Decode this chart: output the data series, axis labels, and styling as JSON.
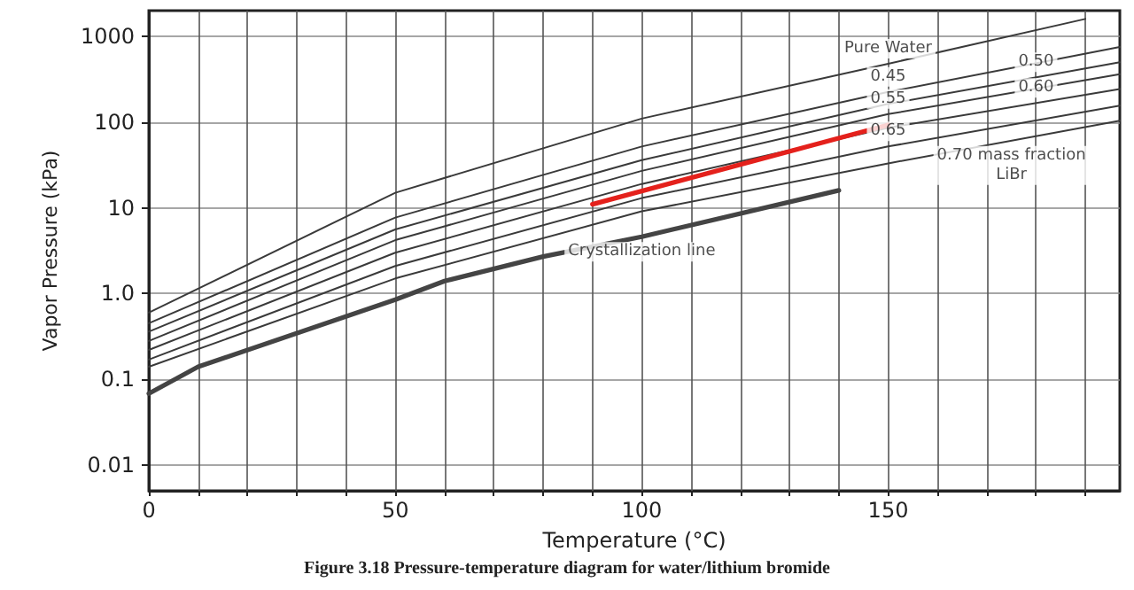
{
  "chart_data": {
    "type": "line",
    "xlabel": "Temperature (°C)",
    "ylabel": "Vapor Pressure (kPa)",
    "log": "y",
    "grid": true,
    "marker": "none",
    "line_style": "solid",
    "color": "#3a3a3a",
    "xlim": [
      0,
      197
    ],
    "xticks": [
      0,
      {
        "value": 10,
        "label": null
      },
      {
        "value": 20,
        "label": null
      },
      {
        "value": 30,
        "label": null
      },
      {
        "value": 40,
        "label": null
      },
      50,
      {
        "value": 60,
        "label": null
      },
      {
        "value": 70,
        "label": null
      },
      {
        "value": 80,
        "label": null
      },
      {
        "value": 90,
        "label": null
      },
      100,
      {
        "value": 110,
        "label": null
      },
      {
        "value": 120,
        "label": null
      },
      {
        "value": 130,
        "label": null
      },
      {
        "value": 140,
        "label": null
      },
      150,
      {
        "value": 160,
        "label": null
      },
      {
        "value": 170,
        "label": null
      },
      {
        "value": 180,
        "label": null
      },
      {
        "value": 190,
        "label": null
      }
    ],
    "ylim": [
      0.005,
      2000
    ],
    "yticks": [
      0.01,
      0.1,
      {
        "value": 1,
        "label": "1.0"
      },
      10,
      100,
      1000
    ],
    "series": [
      {
        "x": [
          0,
          50,
          100,
          150,
          190
        ],
        "values": [
          0.6,
          15,
          110,
          480,
          1600
        ]
      },
      {
        "x": [
          0,
          50,
          100,
          150,
          197
        ],
        "values": [
          0.45,
          7.7,
          52,
          225,
          755
        ]
      },
      {
        "x": [
          0,
          50,
          100,
          150,
          197
        ],
        "values": [
          0.36,
          5.6,
          36,
          163,
          500
        ]
      },
      {
        "x": [
          0,
          50,
          100,
          150,
          197
        ],
        "values": [
          0.28,
          4.2,
          27,
          124,
          362
        ]
      },
      {
        "x": [
          0,
          50,
          100,
          150,
          197
        ],
        "values": [
          0.22,
          3.0,
          19,
          86,
          243
        ]
      },
      {
        "x": [
          0,
          50,
          100,
          150,
          197
        ],
        "values": [
          0.17,
          2.1,
          13,
          52,
          156
        ]
      },
      {
        "x": [
          0,
          50,
          100,
          150,
          197
        ],
        "values": [
          0.14,
          1.5,
          9.1,
          33,
          104
        ]
      },
      {
        "x": [
          0,
          10,
          50,
          60,
          80,
          100,
          140
        ],
        "values": [
          0.068,
          0.14,
          0.85,
          1.4,
          2.7,
          4.6,
          16
        ],
        "color": "#444444"
      },
      {
        "x": [
          90,
          150
        ],
        "values": [
          11,
          93
        ],
        "color": "#e4211c"
      }
    ],
    "annotations": [
      {
        "text": "Pure Water",
        "x": 150,
        "y": 480
      },
      {
        "text": "0.45",
        "x": 150,
        "y": 225
      },
      {
        "text": "0.50",
        "x": 180,
        "y": 333
      },
      {
        "text": "0.55",
        "x": 150,
        "y": 124
      },
      {
        "text": "0.60",
        "x": 180,
        "y": 167
      },
      {
        "text": "0.65",
        "x": 150,
        "y": 52
      },
      {
        "text": "0.70 mass fraction\nLiBr",
        "x": 175,
        "y": 61
      },
      {
        "text": "Crystallization line",
        "x": 100,
        "y": 4.6
      },
      "Figure 3.18 Pressure-temperature diagram for water/lithium bromide"
    ]
  }
}
